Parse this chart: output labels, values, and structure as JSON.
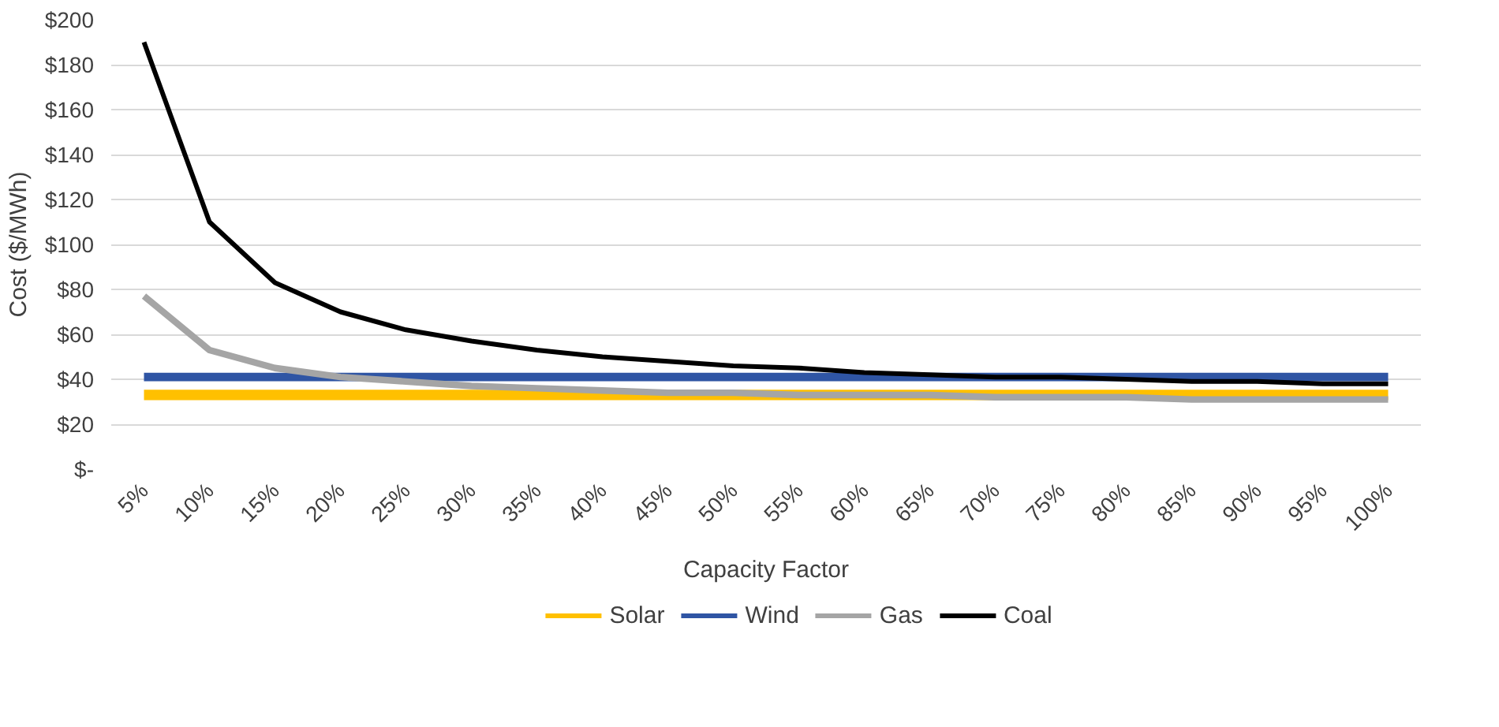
{
  "chart_data": {
    "type": "line",
    "xlabel": "Capacity Factor",
    "ylabel": "Cost ($/MWh)",
    "categories": [
      "5%",
      "10%",
      "15%",
      "20%",
      "25%",
      "30%",
      "35%",
      "40%",
      "45%",
      "50%",
      "55%",
      "60%",
      "65%",
      "70%",
      "75%",
      "80%",
      "85%",
      "90%",
      "95%",
      "100%"
    ],
    "series": [
      {
        "name": "Solar",
        "color": "#ffc000",
        "values": [
          33,
          33,
          33,
          33,
          33,
          33,
          33,
          33,
          33,
          33,
          33,
          33,
          33,
          33,
          33,
          33,
          33,
          33,
          33,
          33
        ]
      },
      {
        "name": "Wind",
        "color": "#2f55a4",
        "values": [
          41,
          41,
          41,
          41,
          41,
          41,
          41,
          41,
          41,
          41,
          41,
          41,
          41,
          41,
          41,
          41,
          41,
          41,
          41,
          41
        ]
      },
      {
        "name": "Gas",
        "color": "#a5a5a5",
        "values": [
          77,
          53,
          45,
          41,
          39,
          37,
          36,
          35,
          34,
          34,
          33,
          33,
          33,
          32,
          32,
          32,
          31,
          31,
          31,
          31
        ]
      },
      {
        "name": "Coal",
        "color": "#000000",
        "values": [
          190,
          110,
          83,
          70,
          62,
          57,
          53,
          50,
          48,
          46,
          45,
          43,
          42,
          41,
          41,
          40,
          39,
          39,
          38,
          38
        ]
      }
    ],
    "ylim": [
      0,
      200
    ],
    "yticks": [
      {
        "value": 0,
        "label": "$-"
      },
      {
        "value": 20,
        "label": "$20"
      },
      {
        "value": 40,
        "label": "$40"
      },
      {
        "value": 60,
        "label": "$60"
      },
      {
        "value": 80,
        "label": "$80"
      },
      {
        "value": 100,
        "label": "$100"
      },
      {
        "value": 120,
        "label": "$120"
      },
      {
        "value": 140,
        "label": "$140"
      },
      {
        "value": 160,
        "label": "$160"
      },
      {
        "value": 180,
        "label": "$180"
      },
      {
        "value": 200,
        "label": "$200"
      }
    ],
    "grid": "y",
    "legend": "bottom",
    "marker": "none",
    "line_style": "solid"
  }
}
